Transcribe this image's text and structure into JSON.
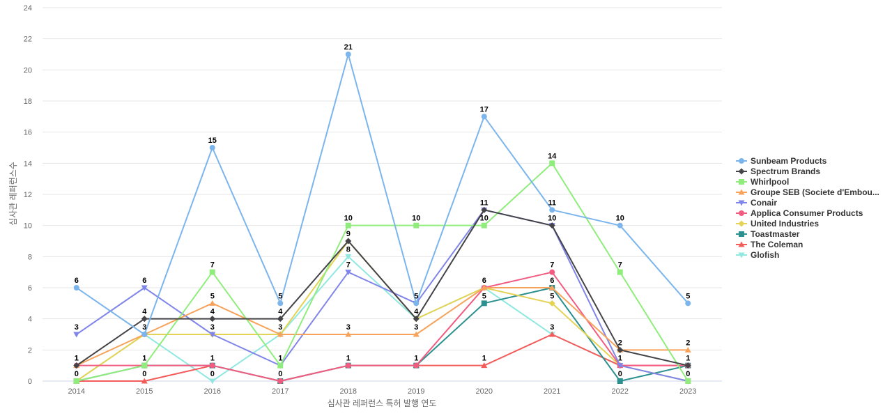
{
  "chart_data": {
    "type": "line",
    "title": "",
    "xlabel": "심사관 레퍼런스 특허 발행 연도",
    "ylabel": "심사관 레퍼런스수",
    "ylim": [
      0,
      24
    ],
    "ytick_step": 2,
    "grid": true,
    "legend_position": "right",
    "categories": [
      "2014",
      "2015",
      "2016",
      "2017",
      "2018",
      "2019",
      "2020",
      "2021",
      "2022",
      "2023"
    ],
    "series": [
      {
        "name": "Sunbeam Products",
        "color": "#7cb5ec",
        "marker": "circle",
        "values": [
          6,
          3,
          15,
          5,
          21,
          5,
          17,
          11,
          10,
          5
        ]
      },
      {
        "name": "Spectrum Brands",
        "color": "#434348",
        "marker": "diamond",
        "values": [
          1,
          4,
          4,
          4,
          9,
          4,
          11,
          10,
          2,
          1
        ]
      },
      {
        "name": "Whirlpool",
        "color": "#90ed7d",
        "marker": "square",
        "values": [
          0,
          1,
          7,
          1,
          10,
          10,
          10,
          14,
          7,
          0
        ]
      },
      {
        "name": "Groupe SEB (Societe d'Embou...",
        "color": "#f7a35c",
        "marker": "triangle",
        "values": [
          1,
          3,
          5,
          3,
          3,
          3,
          6,
          6,
          2,
          2
        ]
      },
      {
        "name": "Conair",
        "color": "#8085e9",
        "marker": "triangle-down",
        "values": [
          3,
          6,
          3,
          1,
          7,
          5,
          11,
          10,
          1,
          0
        ]
      },
      {
        "name": "Applica Consumer Products",
        "color": "#f15c80",
        "marker": "circle",
        "values": [
          1,
          1,
          1,
          0,
          1,
          1,
          6,
          7,
          1,
          1
        ]
      },
      {
        "name": "United Industries",
        "color": "#e4d354",
        "marker": "diamond",
        "values": [
          0,
          3,
          3,
          3,
          9,
          4,
          6,
          5,
          1,
          0
        ]
      },
      {
        "name": "Toastmaster",
        "color": "#2b908f",
        "marker": "square",
        "values": [
          0,
          1,
          1,
          0,
          1,
          1,
          5,
          6,
          0,
          1
        ]
      },
      {
        "name": "The Coleman",
        "color": "#f45b5b",
        "marker": "triangle",
        "values": [
          0,
          0,
          1,
          0,
          1,
          1,
          1,
          3,
          1,
          1
        ]
      },
      {
        "name": "Glofish",
        "color": "#91e8e1",
        "marker": "triangle-down",
        "values": [
          0,
          3,
          0,
          3,
          8,
          4,
          6,
          3,
          1,
          0
        ]
      }
    ],
    "data_labels": [
      {
        "category": "2014",
        "values": [
          6,
          3,
          1,
          1,
          0
        ]
      },
      {
        "category": "2015",
        "values": [
          6,
          4,
          3,
          1,
          0
        ]
      },
      {
        "category": "2016",
        "values": [
          15,
          7,
          5,
          4,
          3,
          1,
          0
        ]
      },
      {
        "category": "2017",
        "values": [
          5,
          4,
          3,
          1,
          0
        ]
      },
      {
        "category": "2018",
        "values": [
          21,
          10,
          9,
          8,
          7,
          3,
          1
        ]
      },
      {
        "category": "2019",
        "values": [
          10,
          5,
          4,
          3,
          1
        ]
      },
      {
        "category": "2020",
        "values": [
          17,
          11,
          10,
          6,
          5,
          1
        ]
      },
      {
        "category": "2021",
        "values": [
          14,
          11,
          10,
          7,
          6,
          5,
          3
        ]
      },
      {
        "category": "2022",
        "values": [
          10,
          7,
          2,
          1,
          0
        ]
      },
      {
        "category": "2023",
        "values": [
          5,
          2,
          1,
          0
        ]
      }
    ]
  }
}
